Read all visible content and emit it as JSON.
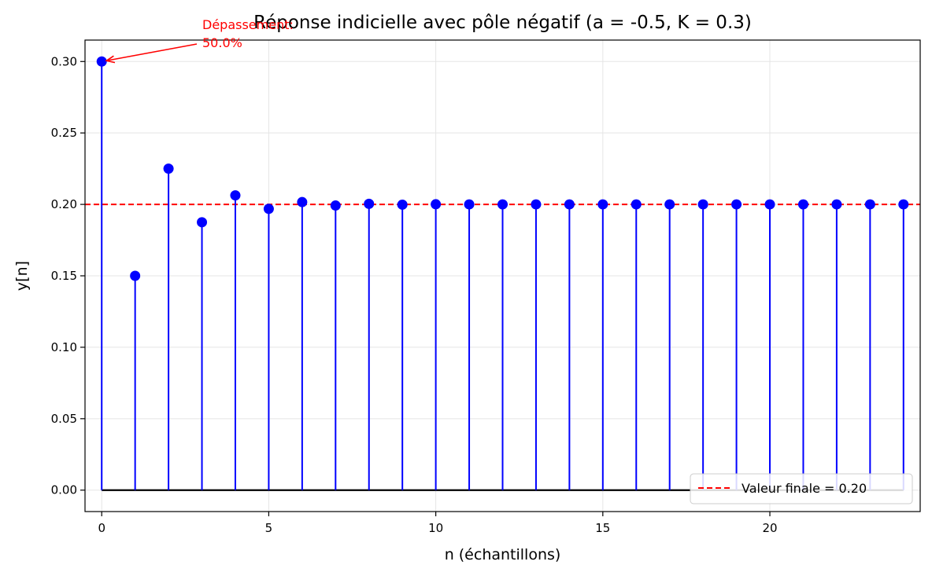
{
  "chart_data": {
    "type": "stem",
    "title": "Réponse indicielle avec pôle négatif (a = -0.5, K = 0.3)",
    "xlabel": "n (échantillons)",
    "ylabel": "y[n]",
    "xlim": [
      -0.5,
      24.5
    ],
    "ylim": [
      -0.015,
      0.315
    ],
    "xticks": [
      0,
      5,
      10,
      15,
      20
    ],
    "xtick_labels": [
      "0",
      "5",
      "10",
      "15",
      "20"
    ],
    "yticks": [
      0.0,
      0.05,
      0.1,
      0.15,
      0.2,
      0.25,
      0.3
    ],
    "ytick_labels": [
      "0.00",
      "0.05",
      "0.10",
      "0.15",
      "0.20",
      "0.25",
      "0.30"
    ],
    "grid": true,
    "legend_position": "lower-right",
    "series": [
      {
        "x": [
          0,
          1,
          2,
          3,
          4,
          5,
          6,
          7,
          8,
          9,
          10,
          11,
          12,
          13,
          14,
          15,
          16,
          17,
          18,
          19,
          20,
          21,
          22,
          23,
          24
        ],
        "values": [
          0.3,
          0.15,
          0.225,
          0.1875,
          0.2063,
          0.1969,
          0.2016,
          0.1992,
          0.2004,
          0.1998,
          0.2001,
          0.2,
          0.2,
          0.2,
          0.2,
          0.2,
          0.2,
          0.2,
          0.2,
          0.2,
          0.2,
          0.2,
          0.2,
          0.2,
          0.2
        ],
        "color": "#0000ff"
      }
    ],
    "reference_line": {
      "y": 0.2,
      "label": "Valeur finale = 0.20",
      "color": "#ff0000",
      "style": "dashed"
    },
    "annotation": {
      "lines": [
        "Dépassement:",
        "50.0%"
      ],
      "target_x": 0,
      "target_y": 0.3,
      "color": "#ff0000"
    }
  }
}
